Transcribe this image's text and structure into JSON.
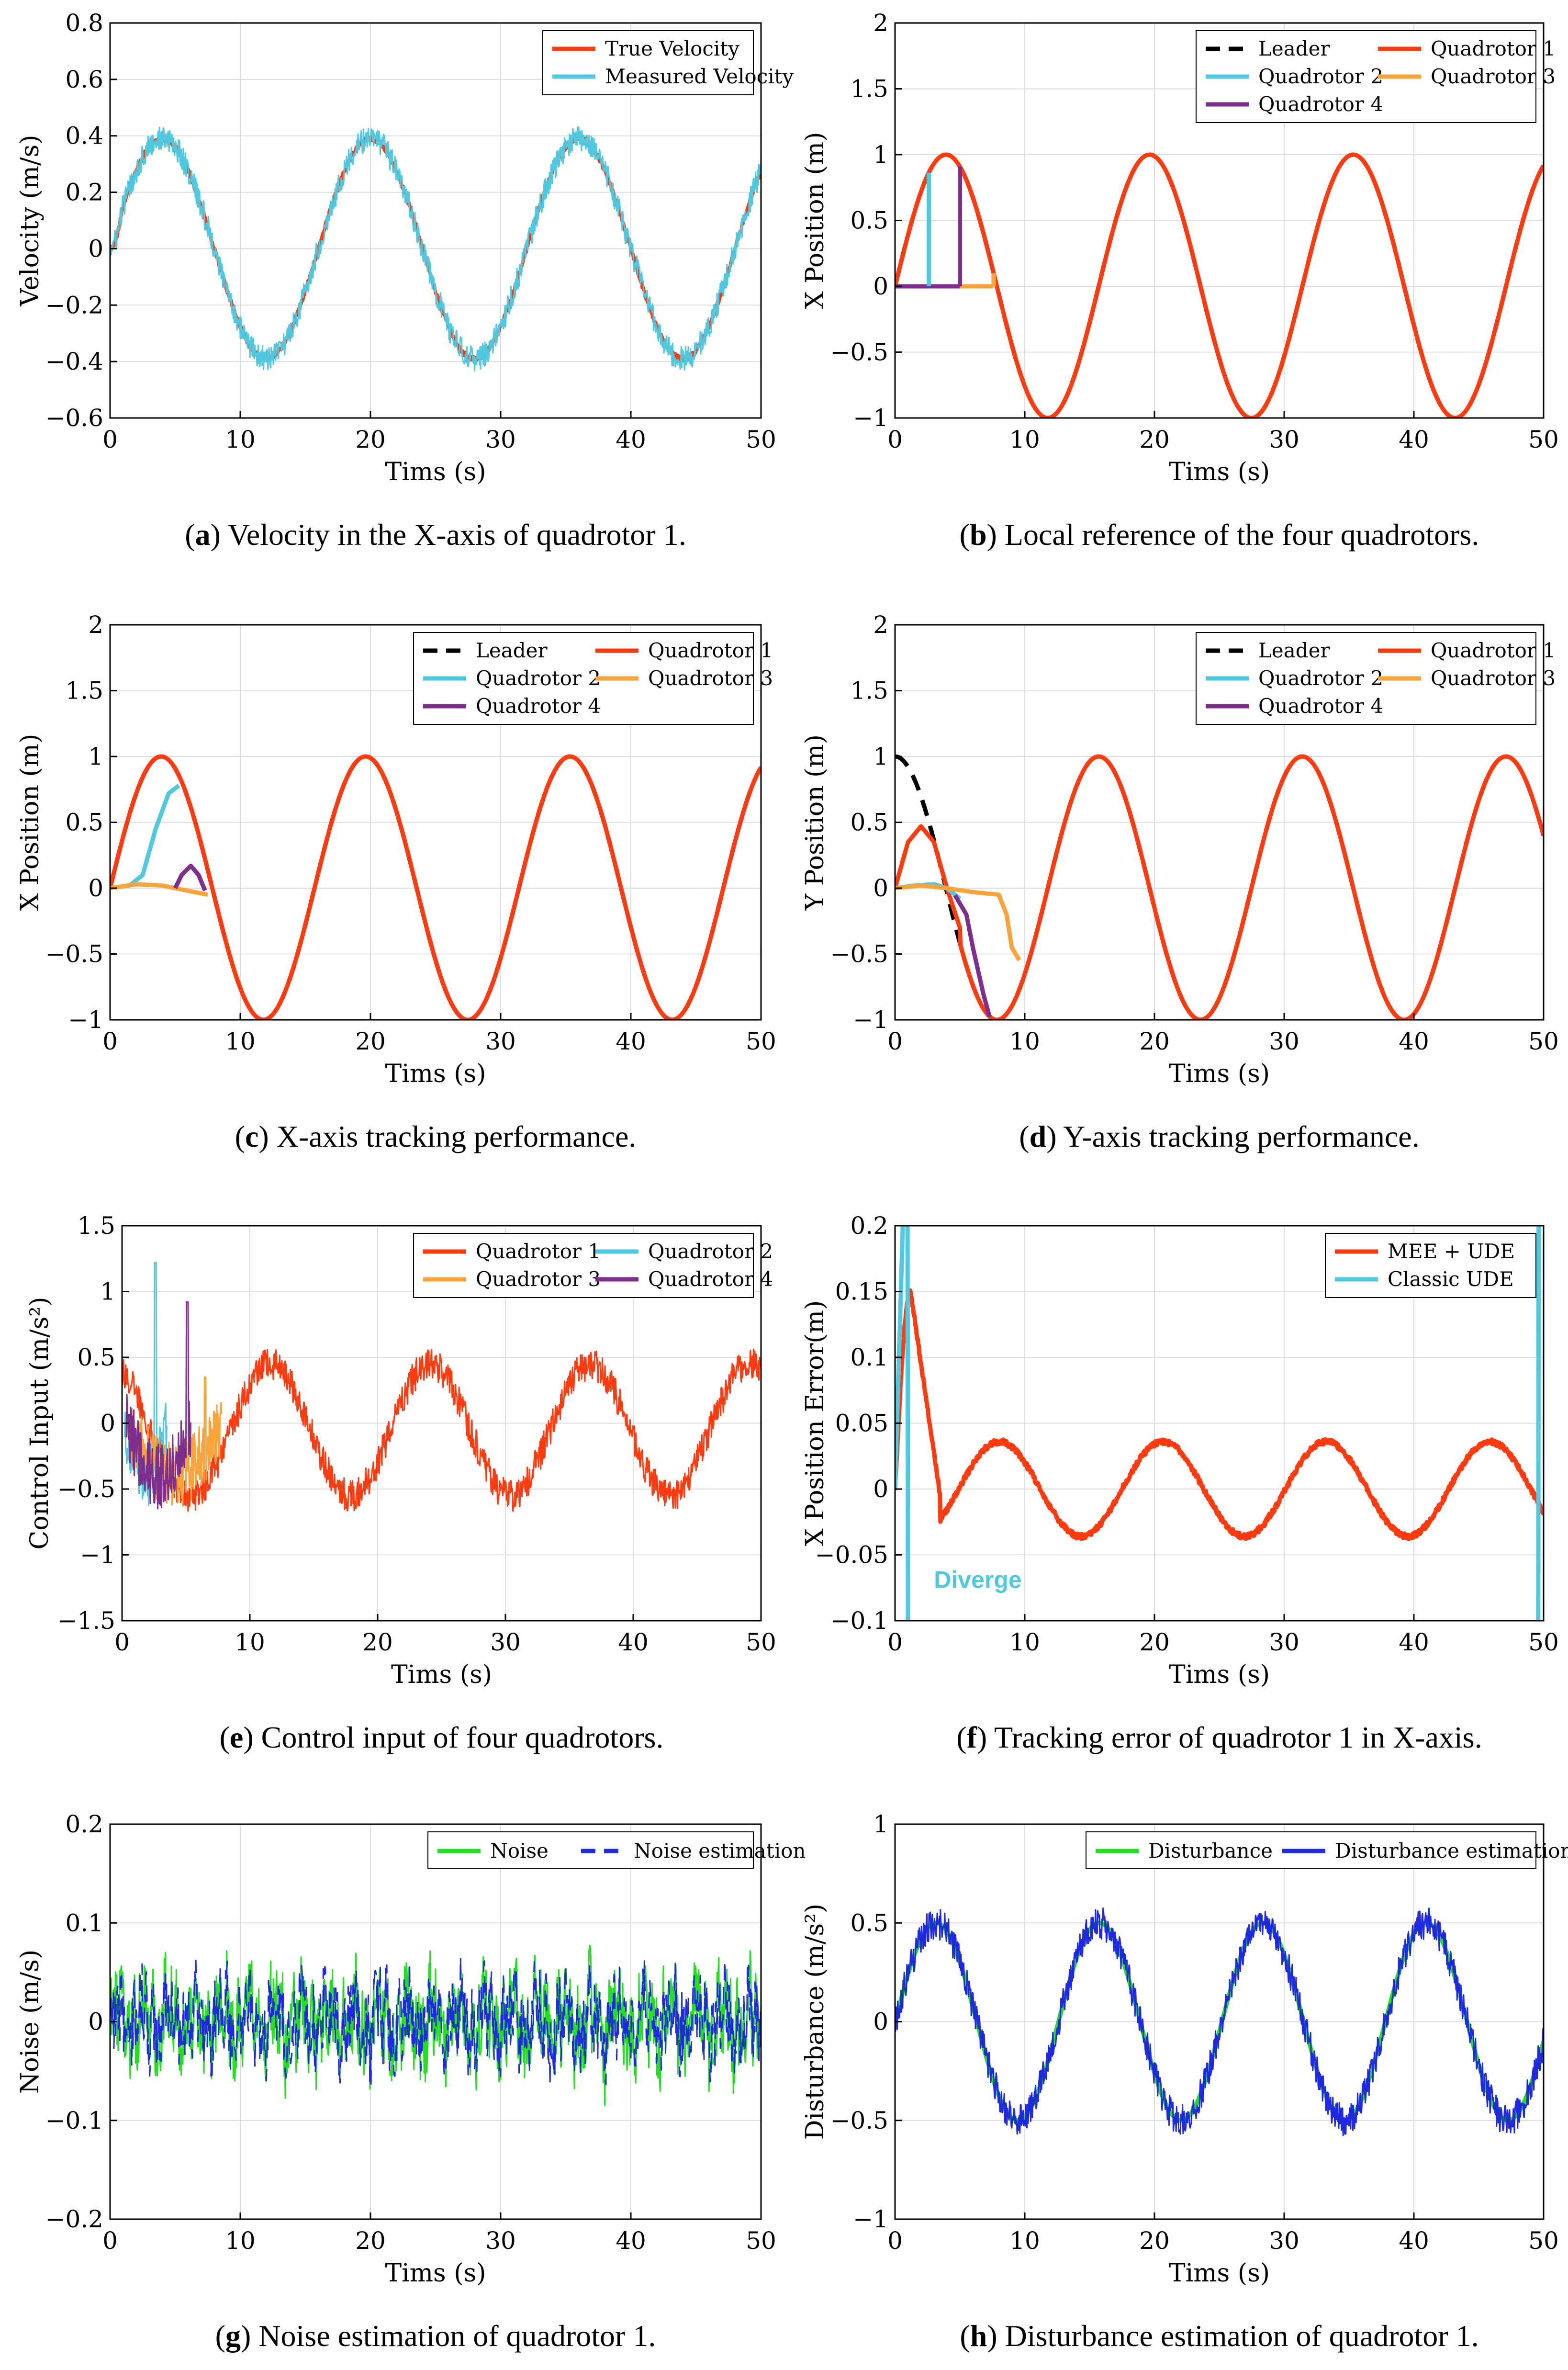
{
  "chart_data": [
    {
      "id": "a",
      "type": "line",
      "xlabel": "Tims (s)",
      "ylabel": "Velocity (m/s)",
      "xlim": [
        0,
        50
      ],
      "ylim": [
        -0.6,
        0.8
      ],
      "xticks": [
        0,
        10,
        20,
        30,
        40,
        50
      ],
      "yticks": [
        -0.6,
        -0.4,
        -0.2,
        0,
        0.2,
        0.4,
        0.6,
        0.8
      ],
      "ytick_labels": [
        "−0.6",
        "−0.4",
        "−0.2",
        "0",
        "0.2",
        "0.4",
        "0.6",
        "0.8"
      ],
      "legend_location": "top-right",
      "series": [
        {
          "name": "True Velocity",
          "color": "#FF3B0F",
          "fn": {
            "kind": "sin",
            "amp": 0.39,
            "period": 16,
            "phase": 0.0,
            "noise": 0.008,
            "startup": 0.9
          }
        },
        {
          "name": "Measured Velocity",
          "color": "#4FC8E0",
          "fn": {
            "kind": "sin",
            "amp": 0.39,
            "period": 16,
            "phase": 0.0,
            "noise": 0.045,
            "startup": 0.9
          }
        }
      ],
      "caption_letter": "a",
      "caption_text": " Velocity in the X-axis of quadrotor 1."
    },
    {
      "id": "b",
      "type": "line",
      "xlabel": "Tims (s)",
      "ylabel": "X Position (m)",
      "xlim": [
        0,
        50
      ],
      "ylim": [
        -1,
        2
      ],
      "xticks": [
        0,
        10,
        20,
        30,
        40,
        50
      ],
      "yticks": [
        -1,
        -0.5,
        0,
        0.5,
        1,
        1.5,
        2
      ],
      "ytick_labels": [
        "−1",
        "−0.5",
        "0",
        "0.5",
        "1",
        "1.5",
        "2"
      ],
      "legend_location": "top-right",
      "series": [
        {
          "name": "Leader",
          "color": "#000000",
          "dash": true,
          "fn": {
            "kind": "sin",
            "amp": 1,
            "period": 15.7,
            "phase": 0
          }
        },
        {
          "name": "Quadrotor 1",
          "color": "#FF3B0F",
          "fn": {
            "kind": "sin",
            "amp": 1,
            "period": 15.7,
            "phase": 0
          }
        },
        {
          "name": "Quadrotor 2",
          "color": "#4FC8E0",
          "fn": {
            "kind": "step",
            "start": 0,
            "jump": 2.6
          }
        },
        {
          "name": "Quadrotor 3",
          "color": "#F9A43A",
          "fn": {
            "kind": "step",
            "start": 0,
            "jump": 7.6
          }
        },
        {
          "name": "Quadrotor 4",
          "color": "#7E2F8E",
          "fn": {
            "kind": "step",
            "start": 0,
            "jump": 5.0
          }
        }
      ],
      "caption_letter": "b",
      "caption_text": " Local reference of the four quadrotors."
    },
    {
      "id": "c",
      "type": "line",
      "xlabel": "Tims (s)",
      "ylabel": "X Position (m)",
      "xlim": [
        0,
        50
      ],
      "ylim": [
        -1,
        2
      ],
      "xticks": [
        0,
        10,
        20,
        30,
        40,
        50
      ],
      "yticks": [
        -1,
        -0.5,
        0,
        0.5,
        1,
        1.5,
        2
      ],
      "ytick_labels": [
        "−1",
        "−0.5",
        "0",
        "0.5",
        "1",
        "1.5",
        "2"
      ],
      "legend_location": "top-right",
      "series": [
        {
          "name": "Leader",
          "color": "#000000",
          "dash": true,
          "fn": {
            "kind": "sin",
            "amp": 1,
            "period": 15.7,
            "phase": 0
          }
        },
        {
          "name": "Quadrotor 1",
          "color": "#FF3B0F",
          "fn": {
            "kind": "sin",
            "amp": 1,
            "period": 15.7,
            "phase": 0
          }
        },
        {
          "name": "Quadrotor 2",
          "color": "#4FC8E0",
          "fn": {
            "kind": "points",
            "pts": [
              [
                0,
                0
              ],
              [
                1.5,
                0.02
              ],
              [
                2.5,
                0.1
              ],
              [
                3.5,
                0.45
              ],
              [
                4.5,
                0.72
              ],
              [
                5.3,
                0.78
              ]
            ]
          }
        },
        {
          "name": "Quadrotor 3",
          "color": "#F9A43A",
          "fn": {
            "kind": "points",
            "pts": [
              [
                0,
                0
              ],
              [
                2,
                0.03
              ],
              [
                4,
                0.02
              ],
              [
                6,
                -0.02
              ],
              [
                7.5,
                -0.05
              ]
            ]
          }
        },
        {
          "name": "Quadrotor 4",
          "color": "#7E2F8E",
          "fn": {
            "kind": "points",
            "pts": [
              [
                5,
                0
              ],
              [
                5.5,
                0.1
              ],
              [
                6.2,
                0.17
              ],
              [
                6.8,
                0.1
              ],
              [
                7.3,
                -0.02
              ]
            ]
          }
        }
      ],
      "caption_letter": "c",
      "caption_text": " X-axis tracking performance."
    },
    {
      "id": "d",
      "type": "line",
      "xlabel": "Tims (s)",
      "ylabel": "Y Position (m)",
      "xlim": [
        0,
        50
      ],
      "ylim": [
        -1,
        2
      ],
      "xticks": [
        0,
        10,
        20,
        30,
        40,
        50
      ],
      "yticks": [
        -1,
        -0.5,
        0,
        0.5,
        1,
        1.5,
        2
      ],
      "ytick_labels": [
        "−1",
        "−0.5",
        "0",
        "0.5",
        "1",
        "1.5",
        "2"
      ],
      "legend_location": "top-right",
      "series": [
        {
          "name": "Leader",
          "color": "#000000",
          "dash": true,
          "fn": {
            "kind": "cos",
            "amp": 1,
            "period": 15.7,
            "phase": 0
          }
        },
        {
          "name": "Quadrotor 1",
          "color": "#FF3B0F",
          "fn": {
            "kind": "points_then_cos",
            "pts": [
              [
                0,
                0
              ],
              [
                1,
                0.35
              ],
              [
                2,
                0.47
              ],
              [
                3,
                0.35
              ],
              [
                4,
                0.0
              ],
              [
                5,
                -0.3
              ]
            ],
            "from": 5
          }
        },
        {
          "name": "Quadrotor 2",
          "color": "#4FC8E0",
          "fn": {
            "kind": "points",
            "pts": [
              [
                0,
                0
              ],
              [
                1.5,
                0.02
              ],
              [
                3,
                0.03
              ],
              [
                4,
                0.0
              ],
              [
                5,
                -0.08
              ]
            ]
          }
        },
        {
          "name": "Quadrotor 3",
          "color": "#F9A43A",
          "fn": {
            "kind": "points",
            "pts": [
              [
                0,
                0
              ],
              [
                2,
                0.02
              ],
              [
                4,
                0.0
              ],
              [
                6,
                -0.03
              ],
              [
                8,
                -0.05
              ],
              [
                8.6,
                -0.2
              ],
              [
                9,
                -0.45
              ],
              [
                9.6,
                -0.55
              ]
            ]
          }
        },
        {
          "name": "Quadrotor 4",
          "color": "#7E2F8E",
          "fn": {
            "kind": "points",
            "pts": [
              [
                4.6,
                -0.05
              ],
              [
                5.5,
                -0.2
              ],
              [
                6,
                -0.45
              ],
              [
                6.8,
                -0.8
              ],
              [
                7.3,
                -0.98
              ]
            ]
          }
        }
      ],
      "caption_letter": "d",
      "caption_text": " Y-axis tracking performance."
    },
    {
      "id": "e",
      "type": "line",
      "xlabel": "Tims (s)",
      "ylabel": "Control Input (m/s²)",
      "xlim": [
        0,
        50
      ],
      "ylim": [
        -1.5,
        1.5
      ],
      "xticks": [
        0,
        10,
        20,
        30,
        40,
        50
      ],
      "yticks": [
        -1.5,
        -1,
        -0.5,
        0,
        0.5,
        1,
        1.5
      ],
      "ytick_labels": [
        "−1.5",
        "−1",
        "−0.5",
        "0",
        "0.5",
        "1",
        "1.5"
      ],
      "legend_location": "top-right",
      "series": [
        {
          "name": "Quadrotor 1",
          "color": "#FF3B0F",
          "fn": {
            "kind": "sin",
            "amp": 0.5,
            "period": 12.5,
            "phase": -4.0,
            "noise": 0.12,
            "dc": -0.05
          }
        },
        {
          "name": "Quadrotor 2",
          "color": "#4FC8E0",
          "fn": {
            "kind": "burst",
            "t0": 0.2,
            "t1": 3.5,
            "peak": 1.22,
            "at": 2.6
          }
        },
        {
          "name": "Quadrotor 3",
          "color": "#F9A43A",
          "fn": {
            "kind": "burst",
            "t0": 0.3,
            "t1": 7.8,
            "peak": 0.35,
            "at": 6.5
          }
        },
        {
          "name": "Quadrotor 4",
          "color": "#7E2F8E",
          "fn": {
            "kind": "burst",
            "t0": 0.3,
            "t1": 5.4,
            "peak": 0.92,
            "at": 5.1
          }
        }
      ],
      "caption_letter": "e",
      "caption_text": " Control input of four quadrotors."
    },
    {
      "id": "f",
      "type": "line",
      "xlabel": "Tims (s)",
      "ylabel": "X Position Error(m)",
      "xlim": [
        0,
        50
      ],
      "ylim": [
        -0.1,
        0.2
      ],
      "xticks": [
        0,
        10,
        20,
        30,
        40,
        50
      ],
      "yticks": [
        -0.1,
        -0.05,
        0,
        0.05,
        0.1,
        0.15,
        0.2
      ],
      "ytick_labels": [
        "−0.1",
        "−0.05",
        "0",
        "0.05",
        "0.1",
        "0.15",
        "0.2"
      ],
      "legend_location": "top-right",
      "annotation": "Diverge",
      "series": [
        {
          "name": "MEE + UDE",
          "color": "#FF3B0F",
          "fn": {
            "kind": "error"
          }
        },
        {
          "name": "Classic UDE",
          "color": "#4FC8E0",
          "fn": {
            "kind": "diverge"
          }
        }
      ],
      "caption_letter": "f",
      "caption_text": " Tracking error of quadrotor 1 in X-axis."
    },
    {
      "id": "g",
      "type": "line",
      "xlabel": "Tims (s)",
      "ylabel": "Noise (m/s)",
      "xlim": [
        0,
        50
      ],
      "ylim": [
        -0.2,
        0.2
      ],
      "xticks": [
        0,
        10,
        20,
        30,
        40,
        50
      ],
      "yticks": [
        -0.2,
        -0.1,
        0,
        0.1,
        0.2
      ],
      "ytick_labels": [
        "−0.2",
        "−0.1",
        "0",
        "0.1",
        "0.2"
      ],
      "legend_location": "top-right",
      "series": [
        {
          "name": "Noise",
          "color": "#22E01F",
          "fn": {
            "kind": "noise",
            "scale": 0.05
          }
        },
        {
          "name": "Noise estimation",
          "color": "#1F2AE0",
          "dash": true,
          "fn": {
            "kind": "noise",
            "scale": 0.045
          }
        }
      ],
      "caption_letter": "g",
      "caption_text": " Noise estimation of quadrotor 1."
    },
    {
      "id": "h",
      "type": "line",
      "xlabel": "Tims (s)",
      "ylabel": "Disturbance (m/s²)",
      "xlim": [
        0,
        50
      ],
      "ylim": [
        -1,
        1
      ],
      "xticks": [
        0,
        10,
        20,
        30,
        40,
        50
      ],
      "yticks": [
        -1,
        -0.5,
        0,
        0.5,
        1
      ],
      "ytick_labels": [
        "−1",
        "−0.5",
        "0",
        "0.5",
        "1"
      ],
      "legend_location": "top-right",
      "series": [
        {
          "name": "Disturbance",
          "color": "#22E01F",
          "fn": {
            "kind": "sin",
            "amp": 0.5,
            "period": 12.6,
            "phase": 0.0
          }
        },
        {
          "name": "Disturbance estimation",
          "color": "#1F2AE0",
          "fn": {
            "kind": "sin",
            "amp": 0.5,
            "period": 12.6,
            "phase": 0.0,
            "noise": 0.08
          }
        }
      ],
      "caption_letter": "h",
      "caption_text": " Disturbance estimation of quadrotor 1."
    }
  ]
}
